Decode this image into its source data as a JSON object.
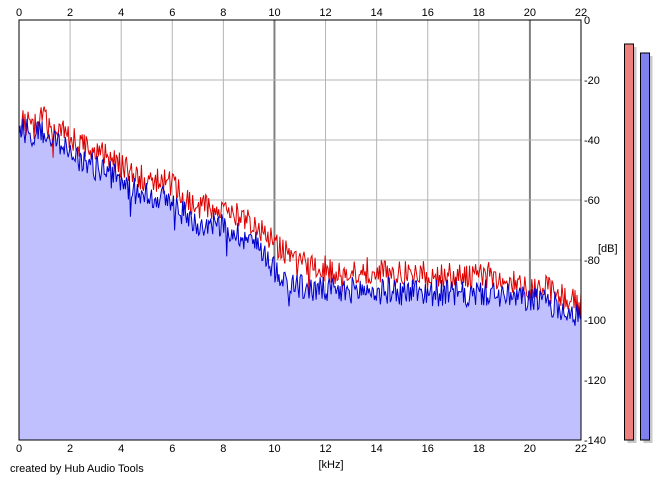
{
  "footer": {
    "credit": "created by Hub Audio Tools"
  },
  "colors": {
    "left_channel": "#dd0000",
    "right_channel": "#0000cc",
    "fill": "#c0c0ff",
    "grid": "#b4b4b4",
    "grid_major": "#808080",
    "left_meter": "#f08080",
    "right_meter": "#8080f0"
  },
  "meters": {
    "left": {
      "level_db": -8
    },
    "right": {
      "level_db": -11
    }
  },
  "chart_data": {
    "type": "line",
    "title": "",
    "xlabel": "[kHz]",
    "ylabel": "[dB]",
    "xlim": [
      0,
      22
    ],
    "ylim": [
      -140,
      0
    ],
    "x_ticks": [
      "0",
      "2",
      "4",
      "6",
      "8",
      "10",
      "12",
      "14",
      "16",
      "18",
      "20",
      "22"
    ],
    "x_ticks_top": [
      "0",
      "2",
      "4",
      "6",
      "8",
      "10",
      "12",
      "14",
      "16",
      "18",
      "20",
      "22"
    ],
    "y_ticks": [
      "0",
      "-20",
      "-40",
      "-60",
      "-80",
      "-100",
      "-120",
      "-140"
    ],
    "grid": true,
    "legend": "none",
    "series": [
      {
        "channel": "left",
        "x": [
          0,
          0.5,
          1,
          1.5,
          2,
          2.5,
          3,
          3.5,
          4,
          4.5,
          5,
          5.5,
          6,
          6.5,
          7,
          7.5,
          8,
          8.5,
          9,
          9.5,
          10,
          10.5,
          11,
          11.5,
          12,
          12.5,
          13,
          13.5,
          14,
          14.5,
          15,
          15.5,
          16,
          16.5,
          17,
          17.5,
          18,
          18.5,
          19,
          19.5,
          20,
          20.5,
          21,
          21.5,
          22
        ],
        "values": [
          -34,
          -35,
          -33,
          -37,
          -39,
          -42,
          -44,
          -46,
          -48,
          -52,
          -53,
          -53,
          -55,
          -60,
          -63,
          -62,
          -63,
          -65,
          -66,
          -70,
          -74,
          -78,
          -81,
          -83,
          -83,
          -84,
          -84,
          -83,
          -84,
          -84,
          -85,
          -84,
          -85,
          -85,
          -85,
          -86,
          -85,
          -85,
          -87,
          -88,
          -89,
          -89,
          -91,
          -93,
          -95
        ]
      },
      {
        "channel": "right",
        "x": [
          0,
          0.5,
          1,
          1.5,
          2,
          2.5,
          3,
          3.5,
          4,
          4.5,
          5,
          5.5,
          6,
          6.5,
          7,
          7.5,
          8,
          8.5,
          9,
          9.5,
          10,
          10.5,
          11,
          11.5,
          12,
          12.5,
          13,
          13.5,
          14,
          14.5,
          15,
          15.5,
          16,
          16.5,
          17,
          17.5,
          18,
          18.5,
          19,
          19.5,
          20,
          20.5,
          21,
          21.5,
          22
        ],
        "values": [
          -36,
          -38,
          -38,
          -42,
          -44,
          -47,
          -49,
          -51,
          -54,
          -57,
          -58,
          -59,
          -61,
          -65,
          -68,
          -67,
          -69,
          -71,
          -73,
          -76,
          -83,
          -87,
          -89,
          -90,
          -90,
          -91,
          -90,
          -90,
          -91,
          -90,
          -91,
          -90,
          -91,
          -91,
          -91,
          -92,
          -91,
          -91,
          -92,
          -93,
          -93,
          -94,
          -95,
          -97,
          -99
        ]
      }
    ]
  }
}
